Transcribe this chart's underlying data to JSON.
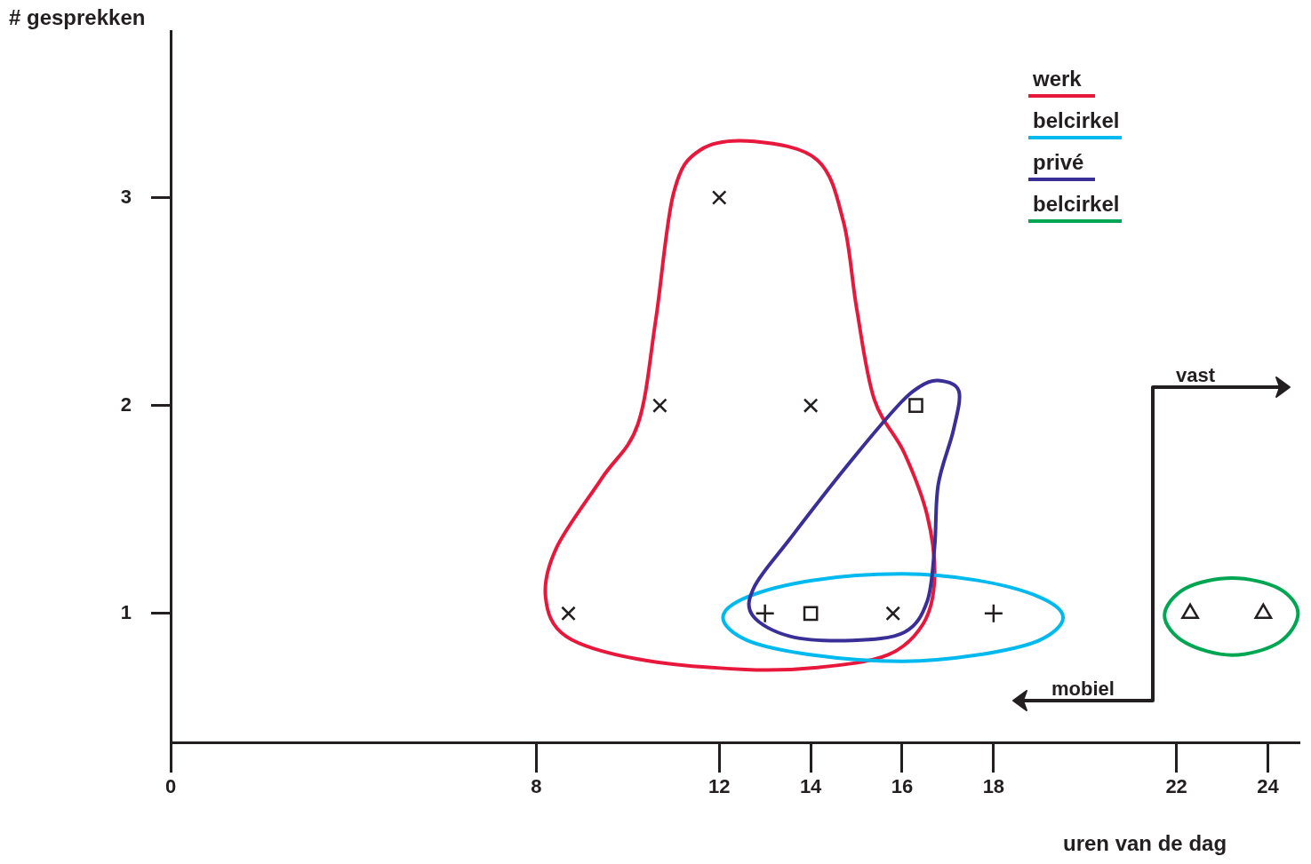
{
  "chart_data": {
    "type": "scatter",
    "xlabel": "uren van de dag",
    "ylabel": "# gesprekken",
    "xlim": [
      0,
      24.7
    ],
    "xticks": [
      0,
      8,
      12,
      14,
      16,
      18,
      22,
      24
    ],
    "ylim": [
      0.38,
      3.8
    ],
    "yticks": [
      1,
      2,
      3
    ],
    "grid": false,
    "annotations": [
      "werk",
      "belcirkel",
      "privé",
      "belcirkel",
      "vast",
      "mobiel"
    ],
    "series": [
      {
        "color": "#231f20",
        "marker": "x",
        "x": [
          8.7,
          10.7,
          12,
          14,
          15.8
        ],
        "values": [
          1,
          2,
          3,
          2,
          1
        ]
      },
      {
        "color": "#231f20",
        "marker": "cross",
        "x": [
          13,
          18
        ],
        "values": [
          1,
          1
        ]
      },
      {
        "color": "#231f20",
        "marker": "square",
        "x": [
          14,
          16.3
        ],
        "values": [
          1,
          2
        ]
      },
      {
        "color": "#231f20",
        "marker": "triangle",
        "x": [
          22.3,
          23.9
        ],
        "values": [
          1,
          1
        ]
      }
    ]
  }
}
